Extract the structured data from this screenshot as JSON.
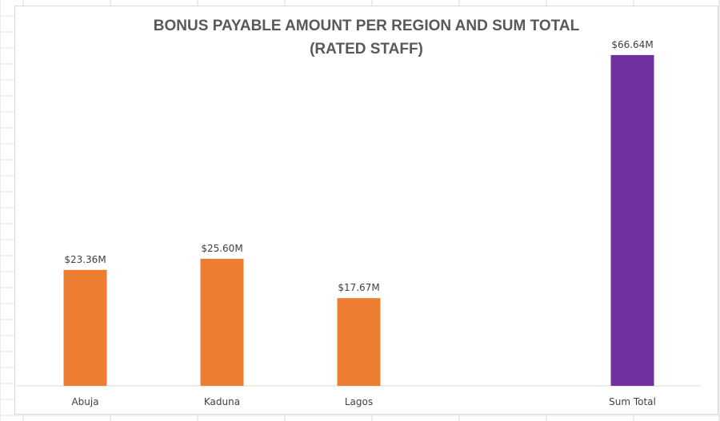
{
  "chart_data": {
    "type": "bar",
    "title": "BONUS PAYABLE AMOUNT PER REGION AND SUM TOTAL",
    "subtitle": "(RATED STAFF)",
    "categories": [
      "Abuja",
      "Kaduna",
      "Lagos",
      "",
      "Sum Total"
    ],
    "values": [
      23.36,
      25.6,
      17.67,
      null,
      66.64
    ],
    "data_labels": [
      "$23.36M",
      "$25.60M",
      "$17.67M",
      "",
      "$66.64M"
    ],
    "bar_colors": [
      "#ed7d31",
      "#ed7d31",
      "#ed7d31",
      null,
      "#7030a0"
    ],
    "xlabel": "",
    "ylabel": "",
    "ylim": [
      0,
      70
    ],
    "grid": false,
    "legend": "none"
  }
}
